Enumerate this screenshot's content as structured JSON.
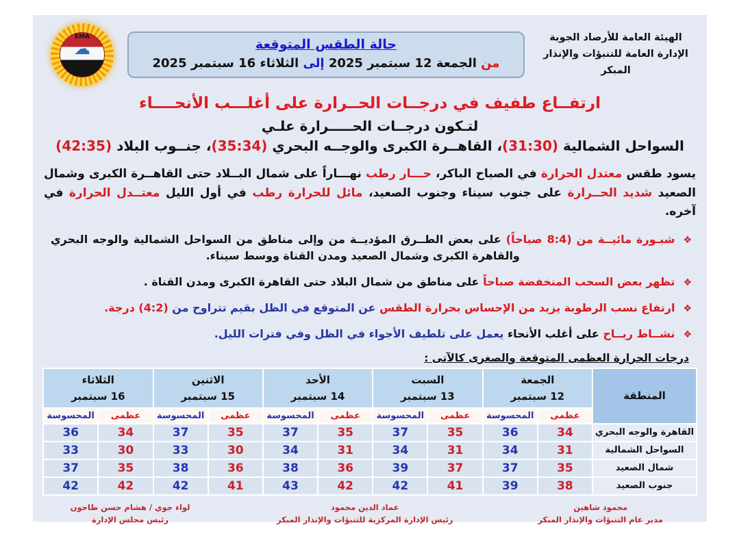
{
  "org": {
    "line1": "الهيئة العامة للأرصاد الجوية",
    "line2": "الإدارة العامة للتنبؤات والإنذار المبكر"
  },
  "logo": {
    "text": "EMA",
    "cloud_icon": "cloud"
  },
  "header_box": {
    "title": "حالة الطقس المتوقعة",
    "date_line": [
      {
        "t": "من ",
        "c": "red"
      },
      {
        "t": "الجمعة 12 سبتمبر 2025 ",
        "c": "black"
      },
      {
        "t": "إلى ",
        "c": "blue"
      },
      {
        "t": "الثلاثاء 16 سبتمبر 2025",
        "c": "black"
      }
    ]
  },
  "headline": "ارتفــاع طفيف في درجــات الحــرارة على أغلـــب الأنحــــاء",
  "subline": "لتـكون درجــات الحـــــرارة علـي",
  "temps_line": [
    {
      "t": "السواحل الشمالية ",
      "c": "black"
    },
    {
      "t": "(31:30)",
      "c": "red"
    },
    {
      "t": "، القاهــرة الكبرى والوجــه البحري ",
      "c": "black"
    },
    {
      "t": "(35:34)",
      "c": "red"
    },
    {
      "t": "، جنــوب البلاد ",
      "c": "black"
    },
    {
      "t": "(42:35)",
      "c": "red"
    }
  ],
  "paragraph": [
    {
      "t": "يسود طقس ",
      "c": "black"
    },
    {
      "t": "معتدل الحرارة ",
      "c": "red"
    },
    {
      "t": "في الصباح الباكر، ",
      "c": "black"
    },
    {
      "t": "حـــار رطب ",
      "c": "red"
    },
    {
      "t": "نهـــاراً على شمال البــلاد حتى القاهــرة الكبرى وشمال الصعيد ",
      "c": "black"
    },
    {
      "t": "شديد الحــرارة ",
      "c": "red"
    },
    {
      "t": "على جنوب سيناء وجنوب الصعيد، ",
      "c": "black"
    },
    {
      "t": "مائل للحرارة رطب ",
      "c": "red"
    },
    {
      "t": "في أول الليل ",
      "c": "black"
    },
    {
      "t": "معتــدل الحرارة ",
      "c": "red"
    },
    {
      "t": "في آخره.",
      "c": "black"
    }
  ],
  "bullets": [
    {
      "marker": "❖",
      "segments": [
        {
          "t": "شبـورة مائيــة من (8:4 صباحاً) ",
          "c": "red"
        },
        {
          "t": "على بعض الطــرق المؤديــة من وإلى مناطق من السواحل الشمالية والوجه البحري والقاهرة الكبرى وشمال الصعيد ومدن القناة ووسط سيناء.",
          "c": "black"
        }
      ]
    },
    {
      "marker": "❖",
      "segments": [
        {
          "t": "تظهر بعض السحب المنخفضة صباحاً ",
          "c": "red"
        },
        {
          "t": "على مناطق من شمال البلاد حتى القاهرة الكبرى ومدن القناة .",
          "c": "black"
        }
      ]
    },
    {
      "marker": "❖",
      "segments": [
        {
          "t": "ارتفاع نسب الرطوبة يزيد من الإحساس بحرارة الطقس ",
          "c": "red"
        },
        {
          "t": "عن المتوقع في الظل بقيم تتراوح من ",
          "c": "navy"
        },
        {
          "t": "(4:2) درجة.",
          "c": "red"
        }
      ]
    },
    {
      "marker": "❖",
      "segments": [
        {
          "t": "نشــاط ريــاح ",
          "c": "red"
        },
        {
          "t": "على أغلب الأنحاء ",
          "c": "black"
        },
        {
          "t": "يعمل على تلطيف الأجواء في الظل وفي فترات الليل.",
          "c": "navy"
        }
      ]
    }
  ],
  "table": {
    "caption": "درجات الحرارة العظمى المتوقعة والصغرى كالآتى :",
    "region_header": "المنطقة",
    "sub_headers": {
      "max": "عظمى",
      "felt": "المحسوسة"
    },
    "days": [
      {
        "name": "الجمعة",
        "date": "12 سبتمبر"
      },
      {
        "name": "السبت",
        "date": "13 سبتمبر"
      },
      {
        "name": "الأحد",
        "date": "14 سبتمبر"
      },
      {
        "name": "الاثنين",
        "date": "15 سبتمبر"
      },
      {
        "name": "الثلاثاء",
        "date": "16 سبتمبر"
      }
    ],
    "rows": [
      {
        "region": "القاهرة والوجه البحري",
        "values": [
          [
            34,
            36
          ],
          [
            35,
            37
          ],
          [
            35,
            37
          ],
          [
            35,
            37
          ],
          [
            34,
            36
          ]
        ]
      },
      {
        "region": "السواحل الشمالية",
        "values": [
          [
            31,
            34
          ],
          [
            31,
            34
          ],
          [
            31,
            34
          ],
          [
            30,
            33
          ],
          [
            30,
            33
          ]
        ]
      },
      {
        "region": "شمال الصعيد",
        "values": [
          [
            35,
            37
          ],
          [
            37,
            39
          ],
          [
            36,
            38
          ],
          [
            36,
            38
          ],
          [
            35,
            37
          ]
        ]
      },
      {
        "region": "جنوب الصعيد",
        "values": [
          [
            38,
            39
          ],
          [
            41,
            42
          ],
          [
            42,
            43
          ],
          [
            41,
            42
          ],
          [
            42,
            42
          ]
        ]
      }
    ]
  },
  "signatures": [
    {
      "name": "محمود شاهين",
      "title": "مدير عام التنبؤات والإنذار المبكر"
    },
    {
      "name": "عماد الدين محمود",
      "title": "رئيس الإدارة المركزية للتنبؤات والإنذار المبكر"
    },
    {
      "name": "لواء جوي / هشام حسن طاحون",
      "title": "رئيس مجلس الإدارة"
    }
  ],
  "colors": {
    "red": "#d81b22",
    "blue": "#1a1ad0",
    "navy": "#2836a0",
    "doc_bg": "#e4e9f3",
    "header_box_bg": "#cddcec",
    "day_header_bg": "#bdd7ee",
    "region_header_bg": "#a3c6e8",
    "cell_bg": "#d8e3ef"
  }
}
